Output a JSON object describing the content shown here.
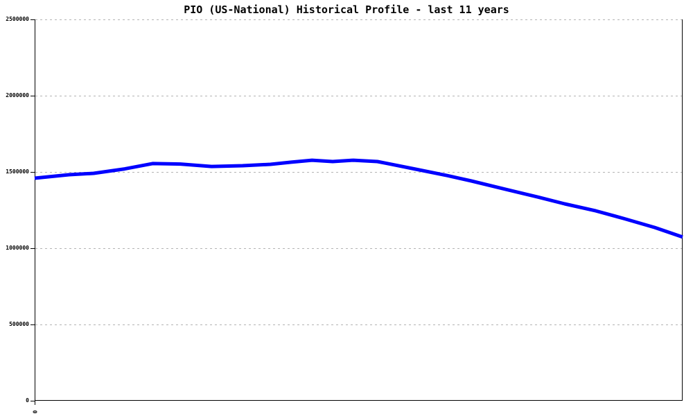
{
  "chart_data": {
    "type": "line",
    "title": "PIO (US-National) Historical Profile - last 11 years",
    "xlabel": "",
    "ylabel": "",
    "ylim": [
      0,
      2500000
    ],
    "grid": "horizontal-dashed",
    "legend": "none",
    "grid_color": "#b3b3b3",
    "axis_color": "#000000",
    "y_ticks": [
      {
        "label": "2500000",
        "value": 2500000
      },
      {
        "label": "2000000",
        "value": 2000000
      },
      {
        "label": "1500000",
        "value": 1500000
      },
      {
        "label": "1000000",
        "value": 1000000
      },
      {
        "label": "500000",
        "value": 500000
      },
      {
        "label": "0",
        "value": 0
      }
    ],
    "x_tick_labels_visible": [
      "0"
    ],
    "series": [
      {
        "name": "PIO (US-National)",
        "color": "#0000ff",
        "line_width": 5,
        "points": [
          [
            0.0,
            1459000
          ],
          [
            0.053,
            1482000
          ],
          [
            0.091,
            1491000
          ],
          [
            0.139,
            1520000
          ],
          [
            0.182,
            1555000
          ],
          [
            0.225,
            1552000
          ],
          [
            0.273,
            1536000
          ],
          [
            0.321,
            1541000
          ],
          [
            0.364,
            1550000
          ],
          [
            0.396,
            1564000
          ],
          [
            0.428,
            1577000
          ],
          [
            0.46,
            1568000
          ],
          [
            0.492,
            1577000
          ],
          [
            0.529,
            1568000
          ],
          [
            0.545,
            1555000
          ],
          [
            0.588,
            1518000
          ],
          [
            0.636,
            1477000
          ],
          [
            0.674,
            1441000
          ],
          [
            0.727,
            1386000
          ],
          [
            0.776,
            1336000
          ],
          [
            0.818,
            1291000
          ],
          [
            0.866,
            1245000
          ],
          [
            0.909,
            1195000
          ],
          [
            0.957,
            1136000
          ],
          [
            1.0,
            1073000
          ]
        ]
      }
    ]
  }
}
